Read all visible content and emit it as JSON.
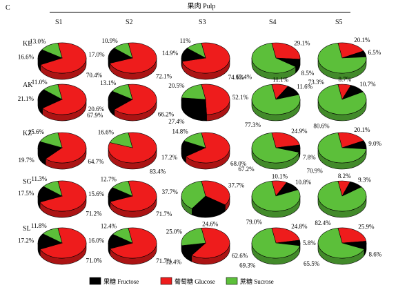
{
  "chart_data": {
    "type": "pie",
    "panel_label": "C",
    "title": "果肉 Pulp",
    "stages": [
      "S1",
      "S2",
      "S3",
      "S4",
      "S5"
    ],
    "cultivars": [
      "KE",
      "AK",
      "KZ",
      "SG",
      "SL"
    ],
    "legend_placement": "bottom",
    "series": [
      {
        "key": "fructose",
        "name": "果糖 Fructose",
        "color": "#000000"
      },
      {
        "key": "glucose",
        "name": "葡萄糖 Glucose",
        "color": "#ee1c1c"
      },
      {
        "key": "sucrose",
        "name": "蔗糖 Sucrose",
        "color": "#5cbf3a"
      }
    ],
    "pies": [
      [
        {
          "fructose": 16.6,
          "glucose": 70.4,
          "sucrose": 13.0,
          "labels": {
            "fructose": "16.6%",
            "glucose": "70.4%",
            "sucrose": "13.0%"
          }
        },
        {
          "fructose": 17.0,
          "glucose": 72.1,
          "sucrose": 10.9,
          "labels": {
            "fructose": "17.0%",
            "glucose": "72.1%",
            "sucrose": "10.9%"
          }
        },
        {
          "fructose": 14.9,
          "glucose": 74.1,
          "sucrose": 11.0,
          "labels": {
            "fructose": "14.9%",
            "glucose": "74.1%",
            "sucrose": "11%"
          }
        },
        {
          "fructose": 8.5,
          "glucose": 29.1,
          "sucrose": 62.4,
          "labels": {
            "fructose": "8.5%",
            "glucose": "29.1%",
            "sucrose": "62.4%"
          }
        },
        {
          "fructose": 6.5,
          "glucose": 20.1,
          "sucrose": 73.3,
          "labels": {
            "fructose": "6.5%",
            "glucose": "20.1%",
            "sucrose": "73.3%"
          }
        }
      ],
      [
        {
          "fructose": 21.1,
          "glucose": 67.9,
          "sucrose": 11.0,
          "labels": {
            "fructose": "21.1%",
            "glucose": "67.9%",
            "sucrose": "11.0%"
          }
        },
        {
          "fructose": 20.6,
          "glucose": 66.2,
          "sucrose": 13.1,
          "labels": {
            "fructose": "20.6%",
            "glucose": "66.2%",
            "sucrose": "13.1%"
          }
        },
        {
          "fructose": 27.4,
          "glucose": 52.1,
          "sucrose": 20.5,
          "labels": {
            "fructose": "27.4%",
            "glucose": "52.1%",
            "sucrose": "20.5%"
          }
        },
        {
          "fructose": 11.6,
          "glucose": 11.1,
          "sucrose": 77.3,
          "labels": {
            "fructose": "11.6%",
            "glucose": "11.1%",
            "sucrose": "77.3%"
          }
        },
        {
          "fructose": 10.7,
          "glucose": 8.7,
          "sucrose": 80.6,
          "labels": {
            "fructose": "10.7%",
            "glucose": "8.7%",
            "sucrose": "80.6%"
          }
        }
      ],
      [
        {
          "fructose": 19.7,
          "glucose": 64.7,
          "sucrose": 15.6,
          "labels": {
            "fructose": "19.7%",
            "glucose": "64.7%",
            "sucrose": "15.6%"
          }
        },
        {
          "fructose": 0.0,
          "glucose": 83.4,
          "sucrose": 16.6,
          "labels": {
            "glucose": "83.4%",
            "sucrose": "16.6%"
          }
        },
        {
          "fructose": 17.2,
          "glucose": 68.0,
          "sucrose": 14.8,
          "labels": {
            "fructose": "17.2%",
            "glucose": "68.0%",
            "sucrose": "14.8%"
          }
        },
        {
          "fructose": 7.8,
          "glucose": 24.9,
          "sucrose": 67.2,
          "labels": {
            "fructose": "7.8%",
            "glucose": "24.9%",
            "sucrose": "67.2%"
          }
        },
        {
          "fructose": 9.0,
          "glucose": 20.1,
          "sucrose": 70.9,
          "labels": {
            "fructose": "9.0%",
            "glucose": "20.1%",
            "sucrose": "70.9%"
          }
        }
      ],
      [
        {
          "fructose": 17.5,
          "glucose": 71.2,
          "sucrose": 11.3,
          "labels": {
            "fructose": "17.5%",
            "glucose": "71.2%",
            "sucrose": "11.3%"
          }
        },
        {
          "fructose": 15.6,
          "glucose": 71.7,
          "sucrose": 12.7,
          "labels": {
            "fructose": "15.6%",
            "glucose": "71.7%",
            "sucrose": "12.7%"
          }
        },
        {
          "fructose": 24.6,
          "glucose": 37.7,
          "sucrose": 37.7,
          "labels": {
            "fructose": "24.6%",
            "glucose": "37.7%",
            "sucrose": "37.7%"
          }
        },
        {
          "fructose": 10.8,
          "glucose": 10.1,
          "sucrose": 79.0,
          "labels": {
            "fructose": "10.8%",
            "glucose": "10.1%",
            "sucrose": "79.0%"
          }
        },
        {
          "fructose": 9.3,
          "glucose": 8.2,
          "sucrose": 82.4,
          "labels": {
            "fructose": "9.3%",
            "glucose": "8.2%",
            "sucrose": "82.4%"
          }
        }
      ],
      [
        {
          "fructose": 17.2,
          "glucose": 71.0,
          "sucrose": 11.8,
          "labels": {
            "fructose": "17.2%",
            "glucose": "71.0%",
            "sucrose": "11.8%"
          }
        },
        {
          "fructose": 16.0,
          "glucose": 71.7,
          "sucrose": 12.4,
          "labels": {
            "fructose": "16.0%",
            "glucose": "71.7%",
            "sucrose": "12.4%"
          }
        },
        {
          "fructose": 12.4,
          "glucose": 62.6,
          "sucrose": 25.0,
          "labels": {
            "fructose": "12.4%",
            "glucose": "62.6%",
            "sucrose": "25.0%"
          }
        },
        {
          "fructose": 5.8,
          "glucose": 24.8,
          "sucrose": 69.3,
          "labels": {
            "fructose": "5.8%",
            "glucose": "24.8%",
            "sucrose": "69.3%"
          }
        },
        {
          "fructose": 8.6,
          "glucose": 25.9,
          "sucrose": 65.5,
          "labels": {
            "fructose": "8.6%",
            "glucose": "25.9%",
            "sucrose": "65.5%"
          }
        }
      ]
    ]
  }
}
